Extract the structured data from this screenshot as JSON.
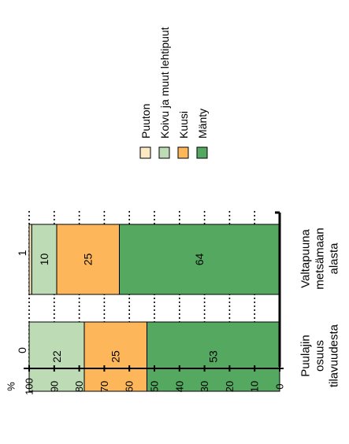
{
  "chart_data": {
    "type": "bar",
    "orientation": "rotated-stacked-bar",
    "ylabel": "%",
    "ylim": [
      0,
      100
    ],
    "yticks": [
      100,
      90,
      80,
      70,
      60,
      50,
      40,
      30,
      20,
      10,
      0
    ],
    "grid": true,
    "legend_placement": "top-right",
    "categories": [
      {
        "index_label": "0",
        "label_lines": [
          "Puulajin",
          "osuus",
          "tilavuudesta"
        ]
      },
      {
        "index_label": "1",
        "label_lines": [
          "Valtapuuna",
          "metsämaan",
          "alasta"
        ]
      }
    ],
    "series": [
      {
        "name": "Mänty",
        "color": "#55a85f",
        "values": [
          53,
          64
        ]
      },
      {
        "name": "Kuusi",
        "color": "#fdb75a",
        "values": [
          25,
          25
        ]
      },
      {
        "name": "Koivu ja muut lehtipuut",
        "color": "#bddcb5",
        "values": [
          22,
          10
        ]
      },
      {
        "name": "Puuton",
        "color": "#fde9c4",
        "values": [
          0,
          1
        ]
      }
    ],
    "data_labels": [
      [
        "53",
        "64"
      ],
      [
        "25",
        "25"
      ],
      [
        "22",
        "10"
      ],
      [
        "",
        ""
      ]
    ]
  }
}
